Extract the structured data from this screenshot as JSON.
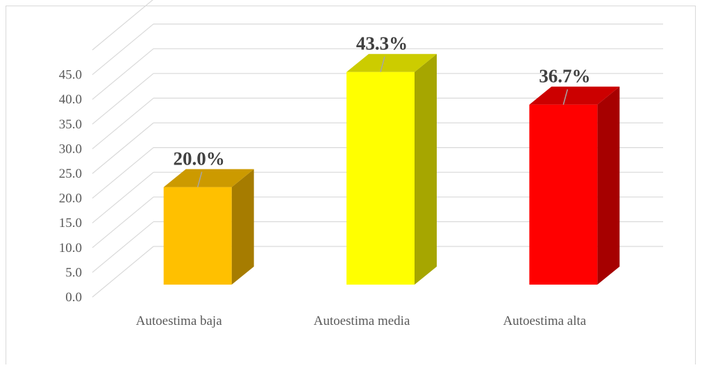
{
  "chart_data": {
    "type": "bar",
    "style": "3d-column",
    "categories": [
      "Autoestima baja",
      "Autoestima media",
      "Autoestima alta"
    ],
    "values": [
      20.0,
      43.3,
      36.7
    ],
    "data_labels": [
      "20.0%",
      "43.3%",
      "36.7%"
    ],
    "colors": [
      "#FFC000",
      "#FFFF00",
      "#FF0000"
    ],
    "side_colors": [
      "#A67C00",
      "#A6A600",
      "#A60000"
    ],
    "top_colors": [
      "#CC9A00",
      "#CCCC00",
      "#CC0000"
    ],
    "y_ticks": [
      "0.0",
      "5.0",
      "10.0",
      "15.0",
      "20.0",
      "25.0",
      "30.0",
      "35.0",
      "40.0",
      "45.0"
    ],
    "ylim": [
      0,
      50
    ],
    "grid": true,
    "legend": "none",
    "title": "",
    "xlabel": "",
    "ylabel": ""
  }
}
